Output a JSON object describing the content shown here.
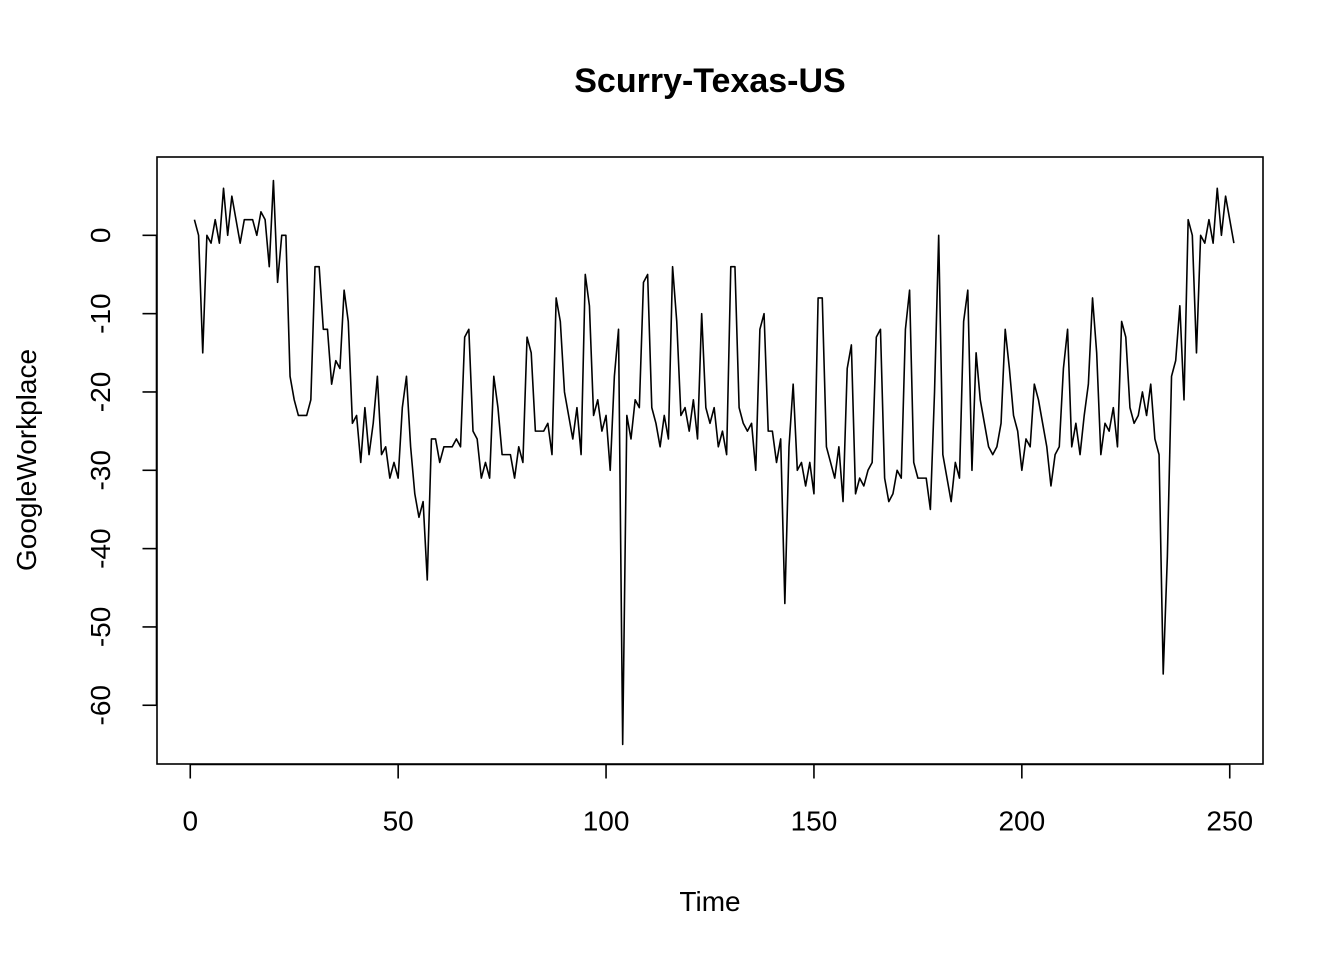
{
  "chart_data": {
    "type": "line",
    "title": "Scurry-Texas-US",
    "xlabel": "Time",
    "ylabel": "GoogleWorkplace",
    "xlim": [
      -8,
      258
    ],
    "ylim": [
      -67.5,
      10
    ],
    "xticks": [
      0,
      50,
      100,
      150,
      200,
      250
    ],
    "yticks": [
      -60,
      -50,
      -40,
      -30,
      -20,
      -10,
      0
    ],
    "grid": false,
    "legend": "none",
    "line_color": "#000000",
    "series": [
      {
        "x_start": 1,
        "values": [
          2,
          0,
          -15,
          0,
          -1,
          2,
          -1,
          6,
          0,
          5,
          2,
          -1,
          2,
          2,
          2,
          0,
          3,
          2,
          -4,
          7,
          -6,
          0,
          0,
          -18,
          -21,
          -23,
          -23,
          -23,
          -21,
          -4,
          -4,
          -12,
          -12,
          -19,
          -16,
          -17,
          -7,
          -11,
          -24,
          -23,
          -29,
          -22,
          -28,
          -24,
          -18,
          -28,
          -27,
          -31,
          -29,
          -31,
          -22,
          -18,
          -27,
          -33,
          -36,
          -34,
          -44,
          -26,
          -26,
          -29,
          -27,
          -27,
          -27,
          -26,
          -27,
          -13,
          -12,
          -25,
          -26,
          -31,
          -29,
          -31,
          -18,
          -22,
          -28,
          -28,
          -28,
          -31,
          -27,
          -29,
          -13,
          -15,
          -25,
          -25,
          -25,
          -24,
          -28,
          -8,
          -11,
          -20,
          -23,
          -26,
          -22,
          -28,
          -5,
          -9,
          -23,
          -21,
          -25,
          -23,
          -30,
          -18,
          -12,
          -65,
          -23,
          -26,
          -21,
          -22,
          -6,
          -5,
          -22,
          -24,
          -27,
          -23,
          -26,
          -4,
          -11,
          -23,
          -22,
          -25,
          -21,
          -26,
          -10,
          -22,
          -24,
          -22,
          -27,
          -25,
          -28,
          -4,
          -4,
          -22,
          -24,
          -25,
          -24,
          -30,
          -12,
          -10,
          -25,
          -25,
          -29,
          -26,
          -47,
          -27,
          -19,
          -30,
          -29,
          -32,
          -29,
          -33,
          -8,
          -8,
          -27,
          -29,
          -31,
          -27,
          -34,
          -17,
          -14,
          -33,
          -31,
          -32,
          -30,
          -29,
          -13,
          -12,
          -31,
          -34,
          -33,
          -30,
          -31,
          -12,
          -7,
          -29,
          -31,
          -31,
          -31,
          -35,
          -20,
          0,
          -28,
          -31,
          -34,
          -29,
          -31,
          -11,
          -7,
          -30,
          -15,
          -21,
          -24,
          -27,
          -28,
          -27,
          -24,
          -12,
          -17,
          -23,
          -25,
          -30,
          -26,
          -27,
          -19,
          -21,
          -24,
          -27,
          -32,
          -28,
          -27,
          -17,
          -12,
          -27,
          -24,
          -28,
          -23,
          -19,
          -8,
          -15,
          -28,
          -24,
          -25,
          -22,
          -27,
          -11,
          -13,
          -22,
          -24,
          -23,
          -20,
          -23,
          -19,
          -26,
          -28,
          -56,
          -41,
          -18,
          -16,
          -9,
          -21,
          2,
          0,
          -15,
          0,
          -1,
          2,
          -1,
          6,
          0,
          5,
          2,
          -1
        ]
      }
    ]
  }
}
